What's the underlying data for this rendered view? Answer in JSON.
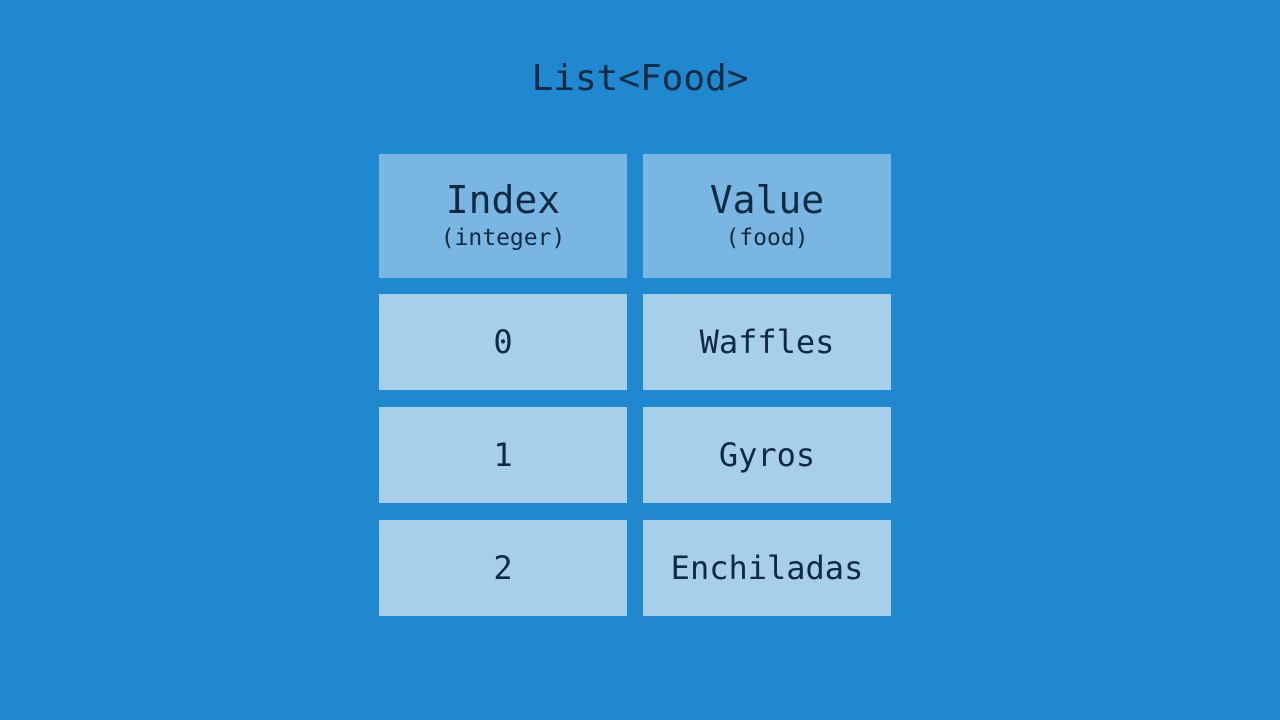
{
  "title": "List<Food>",
  "headers": [
    {
      "label": "Index",
      "sub": "(integer)"
    },
    {
      "label": "Value",
      "sub": "(food)"
    }
  ],
  "rows": [
    {
      "index": "0",
      "value": "Waffles"
    },
    {
      "index": "1",
      "value": "Gyros"
    },
    {
      "index": "2",
      "value": "Enchiladas"
    }
  ],
  "colors": {
    "background": "#2088cf",
    "header": "#7ab6e2",
    "cell": "#a8cfea",
    "text": "#0f2a42"
  }
}
